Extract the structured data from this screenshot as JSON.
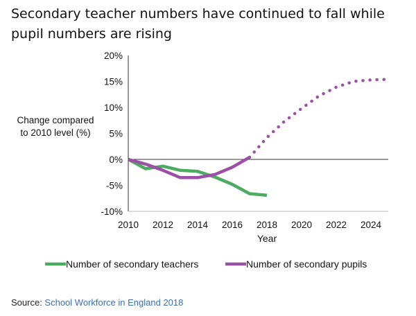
{
  "title": "Secondary teacher numbers have continued to fall while pupil numbers are rising",
  "ylabel": "Change compared to 2010 level (%)",
  "source": {
    "prefix": "Source: ",
    "link_text": "School Workforce in England 2018"
  },
  "chart_data": {
    "type": "line",
    "title": "Secondary teacher numbers have continued to fall while pupil numbers are rising",
    "xlabel": "Year",
    "ylabel": "Change compared to 2010 level (%)",
    "xlim": [
      2010,
      2025
    ],
    "ylim": [
      -10,
      20
    ],
    "x_ticks": [
      2010,
      2012,
      2014,
      2016,
      2018,
      2020,
      2022,
      2024
    ],
    "y_ticks": [
      -10,
      -5,
      0,
      5,
      10,
      15,
      20
    ],
    "y_tick_labels": [
      "-10%",
      "-5%",
      "0%",
      "5%",
      "10%",
      "15%",
      "20%"
    ],
    "grid": false,
    "legend_position": "bottom",
    "series": [
      {
        "name": "Number of secondary teachers",
        "color": "#4bab5e",
        "style": "solid",
        "x": [
          2010,
          2011,
          2012,
          2013,
          2014,
          2015,
          2016,
          2017,
          2018
        ],
        "y": [
          0,
          -1.8,
          -1.3,
          -2.1,
          -2.3,
          -3.4,
          -4.8,
          -6.6,
          -6.9
        ]
      },
      {
        "name": "Number of secondary pupils",
        "color": "#9b4fa6",
        "segments": [
          {
            "style": "solid",
            "x": [
              2010,
              2011,
              2012,
              2013,
              2014,
              2015,
              2016,
              2017
            ],
            "y": [
              0,
              -0.9,
              -2.1,
              -3.5,
              -3.5,
              -2.9,
              -1.5,
              0.4
            ]
          },
          {
            "style": "dotted",
            "x": [
              2017,
              2018,
              2019,
              2020,
              2021,
              2022,
              2023,
              2024,
              2025
            ],
            "y": [
              0.4,
              4.2,
              7.3,
              9.8,
              12.2,
              13.9,
              15.0,
              15.3,
              15.4
            ]
          }
        ]
      }
    ]
  }
}
